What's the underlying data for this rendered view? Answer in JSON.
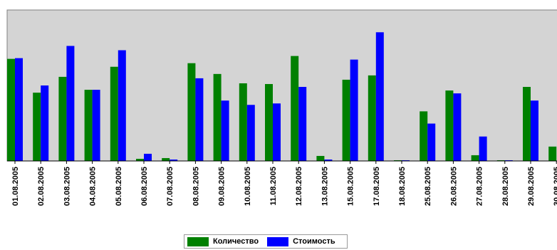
{
  "chart_data": {
    "type": "bar",
    "categories": [
      "01.08.2005",
      "02.08.2005",
      "03.08.2005",
      "04.08.2005",
      "05.08.2005",
      "06.08.2005",
      "07.08.2005",
      "08.08.2005",
      "09.08.2005",
      "10.08.2005",
      "11.08.2005",
      "12.08.2005",
      "13.08.2005",
      "15.08.2005",
      "17.08.2005",
      "18.08.2005",
      "25.08.2005",
      "26.08.2005",
      "27.08.2005",
      "28.08.2005",
      "29.08.2005",
      "30.08.2005"
    ],
    "series": [
      {
        "name": "Количество",
        "color": "#008000",
        "values": [
          142,
          95,
          117,
          99,
          131,
          3,
          4,
          136,
          121,
          108,
          107,
          146,
          7,
          113,
          119,
          1,
          69,
          98,
          8,
          1,
          103,
          20
        ]
      },
      {
        "name": "Стоимость",
        "color": "#0000ff",
        "values": [
          143,
          105,
          160,
          99,
          154,
          10,
          2,
          115,
          84,
          78,
          80,
          103,
          2,
          141,
          179,
          1,
          52,
          94,
          34,
          1,
          84,
          null
        ]
      }
    ],
    "ylim": [
      0,
      210
    ],
    "grid": false,
    "legend_position": "bottom-center",
    "plot_background": "#d4d4d4"
  }
}
